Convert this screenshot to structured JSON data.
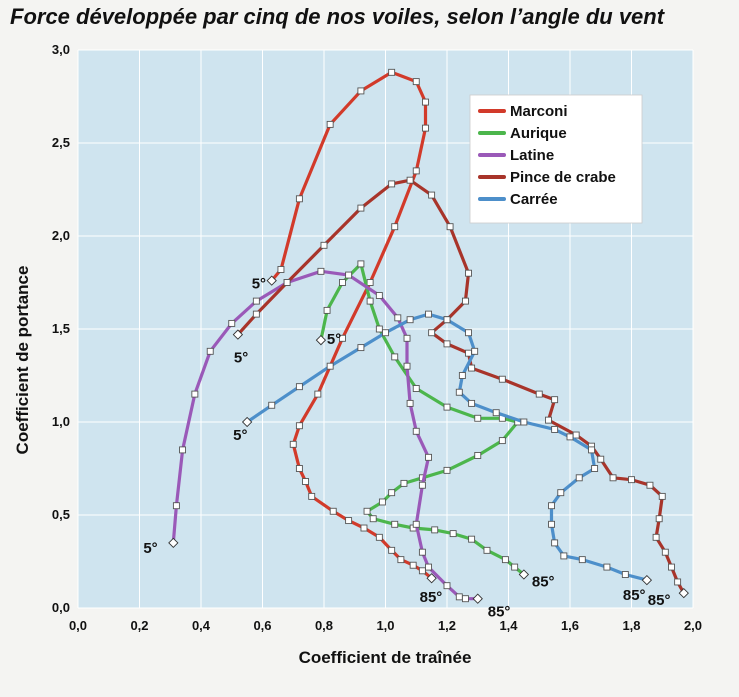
{
  "chart_data": {
    "type": "line",
    "title": "Force développée par cinq de nos voiles, selon l’angle du vent",
    "xlabel": "Coefficient de traînée",
    "ylabel": "Coefficient de portance",
    "xlim": [
      0,
      2.0
    ],
    "ylim": [
      0,
      3.0
    ],
    "xticks": [
      "0,0",
      "0,2",
      "0,4",
      "0,6",
      "0,8",
      "1,0",
      "1,2",
      "1,4",
      "1,6",
      "1,8",
      "2,0"
    ],
    "yticks": [
      "0,0",
      "0,5",
      "1,0",
      "1,5",
      "2,0",
      "2,5",
      "3,0"
    ],
    "grid": true,
    "legend_position": "top-right",
    "background_color": "#cfe4ef",
    "series": [
      {
        "name": "Marconi",
        "color": "#d23a2a",
        "points": [
          [
            0.63,
            1.76
          ],
          [
            0.66,
            1.82
          ],
          [
            0.72,
            2.2
          ],
          [
            0.82,
            2.6
          ],
          [
            0.92,
            2.78
          ],
          [
            1.02,
            2.88
          ],
          [
            1.1,
            2.83
          ],
          [
            1.13,
            2.72
          ],
          [
            1.13,
            2.58
          ],
          [
            1.1,
            2.35
          ],
          [
            1.03,
            2.05
          ],
          [
            0.95,
            1.75
          ],
          [
            0.86,
            1.45
          ],
          [
            0.78,
            1.15
          ],
          [
            0.72,
            0.98
          ],
          [
            0.7,
            0.88
          ],
          [
            0.72,
            0.75
          ],
          [
            0.74,
            0.68
          ],
          [
            0.76,
            0.6
          ],
          [
            0.83,
            0.52
          ],
          [
            0.88,
            0.47
          ],
          [
            0.93,
            0.43
          ],
          [
            0.98,
            0.38
          ],
          [
            1.02,
            0.31
          ],
          [
            1.05,
            0.26
          ],
          [
            1.09,
            0.23
          ],
          [
            1.12,
            0.2
          ],
          [
            1.15,
            0.16
          ]
        ]
      },
      {
        "name": "Aurique",
        "color": "#4cb64c",
        "points": [
          [
            0.79,
            1.44
          ],
          [
            0.81,
            1.6
          ],
          [
            0.86,
            1.75
          ],
          [
            0.92,
            1.85
          ],
          [
            0.95,
            1.65
          ],
          [
            0.98,
            1.5
          ],
          [
            1.03,
            1.35
          ],
          [
            1.1,
            1.18
          ],
          [
            1.2,
            1.08
          ],
          [
            1.3,
            1.02
          ],
          [
            1.38,
            1.02
          ],
          [
            1.43,
            1.0
          ],
          [
            1.38,
            0.9
          ],
          [
            1.3,
            0.82
          ],
          [
            1.2,
            0.74
          ],
          [
            1.12,
            0.7
          ],
          [
            1.06,
            0.67
          ],
          [
            1.02,
            0.62
          ],
          [
            0.99,
            0.57
          ],
          [
            0.94,
            0.52
          ],
          [
            0.96,
            0.48
          ],
          [
            1.03,
            0.45
          ],
          [
            1.09,
            0.43
          ],
          [
            1.16,
            0.42
          ],
          [
            1.22,
            0.4
          ],
          [
            1.28,
            0.37
          ],
          [
            1.33,
            0.31
          ],
          [
            1.39,
            0.26
          ],
          [
            1.42,
            0.22
          ],
          [
            1.45,
            0.18
          ]
        ]
      },
      {
        "name": "Latine",
        "color": "#9a59b8",
        "points": [
          [
            0.31,
            0.35
          ],
          [
            0.32,
            0.55
          ],
          [
            0.34,
            0.85
          ],
          [
            0.38,
            1.15
          ],
          [
            0.43,
            1.38
          ],
          [
            0.5,
            1.53
          ],
          [
            0.58,
            1.65
          ],
          [
            0.68,
            1.75
          ],
          [
            0.79,
            1.81
          ],
          [
            0.88,
            1.79
          ],
          [
            0.98,
            1.68
          ],
          [
            1.04,
            1.56
          ],
          [
            1.07,
            1.45
          ],
          [
            1.07,
            1.3
          ],
          [
            1.08,
            1.1
          ],
          [
            1.1,
            0.95
          ],
          [
            1.14,
            0.81
          ],
          [
            1.12,
            0.66
          ],
          [
            1.1,
            0.45
          ],
          [
            1.12,
            0.3
          ],
          [
            1.14,
            0.22
          ],
          [
            1.2,
            0.12
          ],
          [
            1.24,
            0.06
          ],
          [
            1.26,
            0.05
          ],
          [
            1.3,
            0.05
          ]
        ]
      },
      {
        "name": "Pince de crabe",
        "color": "#a8342a",
        "points": [
          [
            0.52,
            1.47
          ],
          [
            0.58,
            1.58
          ],
          [
            0.68,
            1.75
          ],
          [
            0.8,
            1.95
          ],
          [
            0.92,
            2.15
          ],
          [
            1.02,
            2.28
          ],
          [
            1.08,
            2.3
          ],
          [
            1.15,
            2.22
          ],
          [
            1.21,
            2.05
          ],
          [
            1.27,
            1.8
          ],
          [
            1.26,
            1.65
          ],
          [
            1.2,
            1.55
          ],
          [
            1.15,
            1.48
          ],
          [
            1.2,
            1.42
          ],
          [
            1.27,
            1.37
          ],
          [
            1.28,
            1.29
          ],
          [
            1.38,
            1.23
          ],
          [
            1.5,
            1.15
          ],
          [
            1.55,
            1.12
          ],
          [
            1.53,
            1.01
          ],
          [
            1.62,
            0.93
          ],
          [
            1.67,
            0.87
          ],
          [
            1.7,
            0.8
          ],
          [
            1.74,
            0.7
          ],
          [
            1.8,
            0.69
          ],
          [
            1.86,
            0.66
          ],
          [
            1.9,
            0.6
          ],
          [
            1.89,
            0.48
          ],
          [
            1.88,
            0.38
          ],
          [
            1.91,
            0.3
          ],
          [
            1.93,
            0.22
          ],
          [
            1.95,
            0.14
          ],
          [
            1.97,
            0.08
          ]
        ]
      },
      {
        "name": "Carrée",
        "color": "#4d8fca",
        "points": [
          [
            0.55,
            1.0
          ],
          [
            0.63,
            1.09
          ],
          [
            0.72,
            1.19
          ],
          [
            0.82,
            1.3
          ],
          [
            0.92,
            1.4
          ],
          [
            1.0,
            1.48
          ],
          [
            1.08,
            1.55
          ],
          [
            1.14,
            1.58
          ],
          [
            1.2,
            1.55
          ],
          [
            1.27,
            1.48
          ],
          [
            1.29,
            1.38
          ],
          [
            1.25,
            1.25
          ],
          [
            1.24,
            1.16
          ],
          [
            1.28,
            1.1
          ],
          [
            1.36,
            1.05
          ],
          [
            1.45,
            1.0
          ],
          [
            1.55,
            0.96
          ],
          [
            1.6,
            0.92
          ],
          [
            1.67,
            0.85
          ],
          [
            1.68,
            0.75
          ],
          [
            1.63,
            0.7
          ],
          [
            1.57,
            0.62
          ],
          [
            1.54,
            0.55
          ],
          [
            1.54,
            0.45
          ],
          [
            1.55,
            0.35
          ],
          [
            1.58,
            0.28
          ],
          [
            1.64,
            0.26
          ],
          [
            1.72,
            0.22
          ],
          [
            1.78,
            0.18
          ],
          [
            1.85,
            0.15
          ]
        ]
      }
    ],
    "annotations": [
      {
        "text": "5°",
        "x": 0.63,
        "y": 1.76
      },
      {
        "text": "5°",
        "x": 0.52,
        "y": 1.47
      },
      {
        "text": "5°",
        "x": 0.79,
        "y": 1.44
      },
      {
        "text": "5°",
        "x": 0.55,
        "y": 1.0
      },
      {
        "text": "5°",
        "x": 0.31,
        "y": 0.35
      },
      {
        "text": "85°",
        "x": 1.15,
        "y": 0.16
      },
      {
        "text": "85°",
        "x": 1.3,
        "y": 0.05
      },
      {
        "text": "85°",
        "x": 1.45,
        "y": 0.18
      },
      {
        "text": "85°",
        "x": 1.85,
        "y": 0.15
      },
      {
        "text": "85°",
        "x": 1.97,
        "y": 0.08
      }
    ]
  }
}
